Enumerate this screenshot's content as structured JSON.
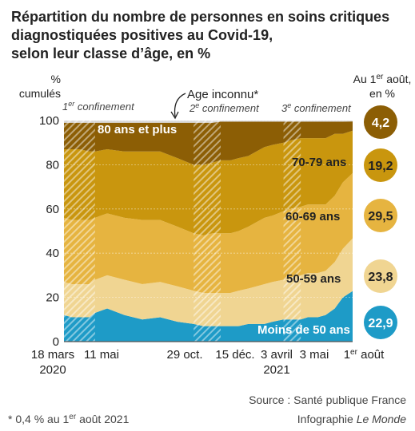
{
  "title_lines": [
    "Répartition du nombre de personnes en soins critiques",
    "diagnostiquées positives au Covid-19,",
    "selon leur classe d’âge, en %"
  ],
  "y_axis_label": [
    "%",
    "cumulés"
  ],
  "right_header": {
    "line1_pre": "Au 1",
    "line1_sup": "er",
    "line1_post": " août,",
    "line2": "en %"
  },
  "periods": [
    {
      "num": "1",
      "sup": "er",
      "text": " confinement"
    },
    {
      "num": "2",
      "sup": "e",
      "text": " confinement"
    },
    {
      "num": "3",
      "sup": "e",
      "text": " confinement"
    }
  ],
  "unknown_age_label": "Age inconnu*",
  "x_labels": {
    "mar18": "18 mars",
    "y2020": "2020",
    "may11": "11 mai",
    "oct29": "29 oct.",
    "dec15": "15 déc.",
    "apr3": "3 avril",
    "y2021": "2021",
    "may3": "3 mai",
    "aug1_num": "1",
    "aug1_sup": "er",
    "aug1_text": " août"
  },
  "source_line": "Source : Santé publique France",
  "credit_prefix": "Infographie ",
  "credit_brand": "Le Monde",
  "footnote": {
    "pre": "* 0,4 % au 1",
    "sup": "er",
    "post": " août 2021"
  },
  "chart_data": {
    "type": "area",
    "stacked": true,
    "xlabel": "",
    "ylabel": "% cumulés",
    "ylim": [
      0,
      100
    ],
    "yticks": [
      0,
      20,
      40,
      60,
      80,
      100
    ],
    "x": [
      "2020-03-18",
      "2020-04-01",
      "2020-04-15",
      "2020-05-01",
      "2020-05-11",
      "2020-06-01",
      "2020-07-01",
      "2020-08-01",
      "2020-09-01",
      "2020-10-01",
      "2020-10-29",
      "2020-11-15",
      "2020-12-01",
      "2020-12-15",
      "2021-01-01",
      "2021-01-15",
      "2021-02-01",
      "2021-02-15",
      "2021-03-01",
      "2021-03-15",
      "2021-04-03",
      "2021-04-15",
      "2021-05-03",
      "2021-05-15",
      "2021-06-01",
      "2021-06-15",
      "2021-07-01",
      "2021-07-15",
      "2021-08-01"
    ],
    "confinements": [
      {
        "start": "2020-03-18",
        "end": "2020-05-11"
      },
      {
        "start": "2020-10-29",
        "end": "2020-12-15"
      },
      {
        "start": "2021-04-03",
        "end": "2021-05-03"
      }
    ],
    "series": [
      {
        "name": "Moins de 50 ans",
        "color": "#1e9bc7",
        "values": [
          12,
          11,
          11,
          11,
          13,
          15,
          12,
          10,
          11,
          9,
          8,
          7,
          7,
          7,
          7,
          7,
          8,
          8,
          8,
          9,
          10,
          10,
          10,
          11,
          11,
          12,
          15,
          20,
          22.9
        ]
      },
      {
        "name": "50-59 ans",
        "color": "#f0d592",
        "values": [
          15,
          15,
          15,
          15,
          15,
          15,
          16,
          16,
          16,
          16,
          15,
          15,
          15,
          15,
          15,
          16,
          16,
          17,
          18,
          18,
          18,
          19,
          20,
          20,
          20,
          20,
          21,
          22,
          23.8
        ]
      },
      {
        "name": "60-69 ans",
        "color": "#e6b440",
        "values": [
          29,
          29,
          29,
          29,
          28,
          28,
          28,
          29,
          28,
          27,
          26,
          26,
          27,
          27,
          27,
          27,
          28,
          29,
          30,
          30,
          31,
          31,
          31,
          31,
          31,
          30,
          30,
          30,
          29.5
        ]
      },
      {
        "name": "70-79 ans",
        "color": "#c9960e",
        "values": [
          31,
          32,
          32,
          31,
          30,
          29,
          30,
          31,
          31,
          31,
          31,
          32,
          32,
          33,
          33,
          33,
          32,
          32,
          32,
          32,
          31,
          31,
          31,
          30,
          30,
          30,
          28,
          22,
          19.2
        ]
      },
      {
        "name": "80 ans et plus",
        "color": "#8c5e05",
        "values": [
          12,
          12,
          12,
          13,
          13,
          12,
          13,
          13,
          13,
          16,
          19,
          19,
          18,
          17.5,
          17.5,
          16.5,
          15.5,
          13.5,
          11.5,
          10.5,
          9.5,
          8.5,
          7.5,
          7.5,
          7.5,
          7.5,
          5.5,
          5.5,
          4.2
        ]
      }
    ],
    "latest_values": [
      "4,2",
      "19,2",
      "29,5",
      "23,8",
      "22,9"
    ],
    "unknown_age_share_latest": 0.4
  }
}
